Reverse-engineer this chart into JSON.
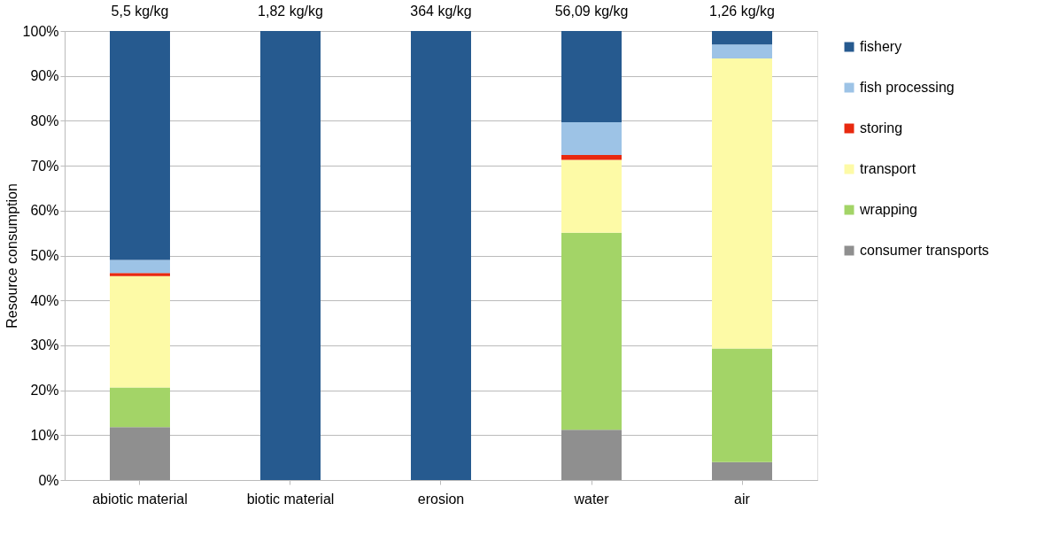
{
  "chart_data": {
    "type": "bar",
    "stacked": true,
    "ylabel": "Resource consumption",
    "categories": [
      "abiotic material",
      "biotic material",
      "erosion",
      "water",
      "air"
    ],
    "series": [
      {
        "name": "consumer transports",
        "color": "#8f8f8f",
        "values": [
          11.8,
          0,
          0,
          11.2,
          4.0
        ]
      },
      {
        "name": "wrapping",
        "color": "#a3d467",
        "values": [
          8.8,
          0,
          0,
          43.9,
          25.3
        ]
      },
      {
        "name": "transport",
        "color": "#fdfaa6",
        "values": [
          24.8,
          0,
          0,
          16.2,
          64.6
        ]
      },
      {
        "name": "storing",
        "color": "#e8290f",
        "values": [
          0.7,
          0,
          0,
          1.1,
          0
        ]
      },
      {
        "name": "fish processing",
        "color": "#9dc3e6",
        "values": [
          2.9,
          0,
          0,
          7.3,
          3.1
        ]
      },
      {
        "name": "fishery",
        "color": "#265a8f",
        "values": [
          51.0,
          100,
          100,
          20.3,
          3.0
        ]
      }
    ],
    "ylim": [
      0,
      100
    ],
    "yticks": [
      {
        "value": 0,
        "label": "0%"
      },
      {
        "value": 10,
        "label": "10%"
      },
      {
        "value": 20,
        "label": "20%"
      },
      {
        "value": 30,
        "label": "30%"
      },
      {
        "value": 40,
        "label": "40%"
      },
      {
        "value": 50,
        "label": "50%"
      },
      {
        "value": 60,
        "label": "60%"
      },
      {
        "value": 70,
        "label": "70%"
      },
      {
        "value": 80,
        "label": "80%"
      },
      {
        "value": 90,
        "label": "90%"
      },
      {
        "value": 100,
        "label": "100%"
      }
    ],
    "grid": "y",
    "legend": "right",
    "annotations": [
      {
        "text": "5,5 kg/kg",
        "x": "abiotic material",
        "y": 100
      },
      {
        "text": "1,82 kg/kg",
        "x": "biotic material",
        "y": 100
      },
      {
        "text": "364 kg/kg",
        "x": "erosion",
        "y": 100
      },
      {
        "text": "56,09 kg/kg",
        "x": "water",
        "y": 100
      },
      {
        "text": "1,26 kg/kg",
        "x": "air",
        "y": 100
      }
    ]
  }
}
